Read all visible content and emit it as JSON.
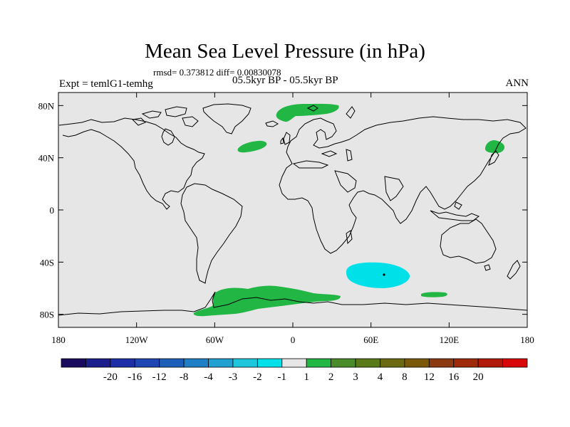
{
  "chart_data": {
    "type": "map-contour",
    "title": "Mean Sea Level Pressure (in hPa)",
    "stats_line": "rmsd= 0.373812 diff= 0.00830078",
    "period": "05.5kyr BP - 05.5kyr BP",
    "experiment": "Expt = temlG1-temhg",
    "season": "ANN",
    "x_axis": {
      "range": [
        -180,
        180
      ],
      "ticks": [
        {
          "value": -180,
          "label": "180"
        },
        {
          "value": -120,
          "label": "120W"
        },
        {
          "value": -60,
          "label": "60W"
        },
        {
          "value": 0,
          "label": "0"
        },
        {
          "value": 60,
          "label": "60E"
        },
        {
          "value": 120,
          "label": "120E"
        },
        {
          "value": 180,
          "label": "180"
        }
      ]
    },
    "y_axis": {
      "range": [
        -90,
        90
      ],
      "ticks": [
        {
          "value": 80,
          "label": "80N"
        },
        {
          "value": 40,
          "label": "40N"
        },
        {
          "value": 0,
          "label": "0"
        },
        {
          "value": -40,
          "label": "40S"
        },
        {
          "value": -80,
          "label": "80S"
        }
      ]
    },
    "colorbar": {
      "colors": [
        "#1a0a5e",
        "#1c1e8c",
        "#1d2fa6",
        "#1f47b4",
        "#1c5fb8",
        "#1f7fc6",
        "#1fa0d0",
        "#1ec6dc",
        "#00e0e8",
        "#e6e6e6",
        "#22b645",
        "#4a8c2a",
        "#5a7a18",
        "#6b6a10",
        "#7a5a08",
        "#8c3a10",
        "#9e2a0a",
        "#b01a08",
        "#d80808"
      ],
      "labels": [
        "-20",
        "-16",
        "-12",
        "-8",
        "-4",
        "-3",
        "-2",
        "-1",
        "1",
        "2",
        "3",
        "4",
        "8",
        "12",
        "16",
        "20"
      ]
    },
    "regions": [
      {
        "name": "greenland-sea-anomaly",
        "category": "1 to 2",
        "color": "#22b645",
        "lon": -5,
        "lat": 73
      },
      {
        "name": "north-atlantic-anomaly",
        "category": "1 to 2",
        "color": "#22b645",
        "lon": -38,
        "lat": 47
      },
      {
        "name": "northwest-pacific-anomaly",
        "category": "1 to 2",
        "color": "#22b645",
        "lon": 155,
        "lat": 45
      },
      {
        "name": "southern-indian-ocean-anomaly",
        "category": "-2 to -1",
        "color": "#00e0e8",
        "lon": 70,
        "lat": -47
      },
      {
        "name": "southeast-indian-ocean-anomaly",
        "category": "1 to 2",
        "color": "#22b645",
        "lon": 117,
        "lat": -62
      },
      {
        "name": "weddell-antarctic-anomaly",
        "category": "1 to 2",
        "color": "#22b645",
        "lon": -35,
        "lat": -70
      }
    ],
    "background_color": "#e6e6e6"
  }
}
